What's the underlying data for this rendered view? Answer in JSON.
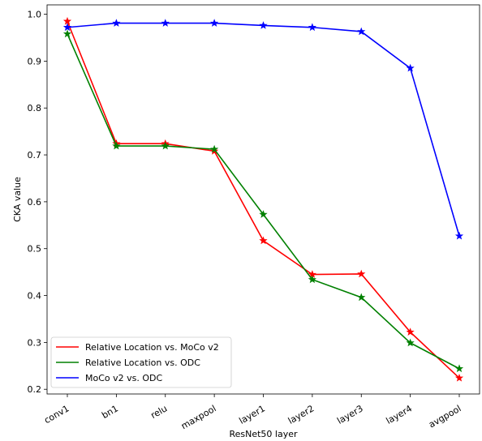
{
  "chart_data": {
    "type": "line",
    "title": "",
    "xlabel": "ResNet50 layer",
    "ylabel": "CKA value",
    "categories": [
      "conv1",
      "bn1",
      "relu",
      "maxpool",
      "layer1",
      "layer2",
      "layer3",
      "layer4",
      "avgpool"
    ],
    "ylim": [
      0.19,
      1.02
    ],
    "yticks": [
      "0.2",
      "0.3",
      "0.4",
      "0.5",
      "0.6",
      "0.7",
      "0.8",
      "0.9",
      "1.0"
    ],
    "grid": false,
    "legend_position": "lower-left",
    "marker": "star",
    "series": [
      {
        "name": "Relative Location vs. MoCo v2",
        "color": "#ff0000",
        "values": [
          0.985,
          0.724,
          0.724,
          0.708,
          0.517,
          0.445,
          0.446,
          0.322,
          0.224
        ]
      },
      {
        "name": "Relative Location vs. ODC",
        "color": "#008000",
        "values": [
          0.958,
          0.719,
          0.719,
          0.712,
          0.573,
          0.434,
          0.396,
          0.299,
          0.244
        ]
      },
      {
        "name": "MoCo v2 vs. ODC",
        "color": "#0000ff",
        "values": [
          0.972,
          0.981,
          0.981,
          0.981,
          0.976,
          0.972,
          0.963,
          0.885,
          0.527
        ]
      }
    ]
  }
}
